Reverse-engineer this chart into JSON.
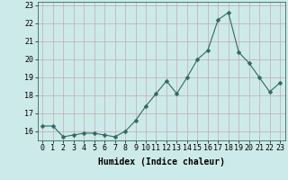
{
  "x": [
    0,
    1,
    2,
    3,
    4,
    5,
    6,
    7,
    8,
    9,
    10,
    11,
    12,
    13,
    14,
    15,
    16,
    17,
    18,
    19,
    20,
    21,
    22,
    23
  ],
  "y": [
    16.3,
    16.3,
    15.7,
    15.8,
    15.9,
    15.9,
    15.8,
    15.7,
    16.0,
    16.6,
    17.4,
    18.1,
    18.8,
    18.1,
    19.0,
    20.0,
    20.5,
    22.2,
    22.6,
    20.4,
    19.8,
    19.0,
    18.2,
    18.7
  ],
  "line_color": "#2e6b5e",
  "marker": "D",
  "marker_size": 2.5,
  "bg_color": "#cdeaea",
  "grid_color": "#c4a8a8",
  "xlabel": "Humidex (Indice chaleur)",
  "ylabel": "",
  "ylim": [
    15.5,
    23.2
  ],
  "xlim": [
    -0.5,
    23.5
  ],
  "yticks": [
    16,
    17,
    18,
    19,
    20,
    21,
    22,
    23
  ],
  "xticks": [
    0,
    1,
    2,
    3,
    4,
    5,
    6,
    7,
    8,
    9,
    10,
    11,
    12,
    13,
    14,
    15,
    16,
    17,
    18,
    19,
    20,
    21,
    22,
    23
  ],
  "xtick_labels": [
    "0",
    "1",
    "2",
    "3",
    "4",
    "5",
    "6",
    "7",
    "8",
    "9",
    "10",
    "11",
    "12",
    "13",
    "14",
    "15",
    "16",
    "17",
    "18",
    "19",
    "20",
    "21",
    "22",
    "23"
  ],
  "label_fontsize": 7.0,
  "tick_fontsize": 6.0
}
